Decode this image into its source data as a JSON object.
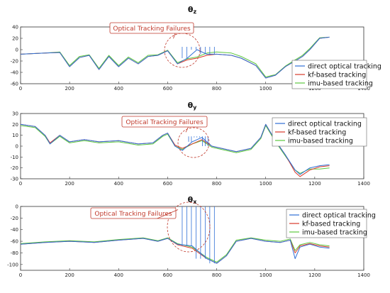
{
  "colors": {
    "direct": "#2f6fd6",
    "kf": "#d93a2b",
    "imu": "#5cc73e",
    "callout": "#c0392b",
    "axis": "#333333"
  },
  "chart_data": [
    {
      "type": "line",
      "title": "θz",
      "title_symbol": "θ",
      "title_sub": "z",
      "xlim": [
        0,
        1400
      ],
      "ylim": [
        -60,
        40
      ],
      "xticks": [
        0,
        200,
        400,
        600,
        800,
        1000,
        1200,
        1400
      ],
      "yticks": [
        -60,
        -40,
        -20,
        0,
        20,
        40
      ],
      "legend_position": "right",
      "annotation": "Optical Tracking Failures",
      "failure_region": [
        650,
        800
      ],
      "x": [
        0,
        100,
        160,
        200,
        240,
        280,
        320,
        360,
        400,
        440,
        480,
        520,
        560,
        600,
        640,
        680,
        720,
        760,
        800,
        860,
        900,
        960,
        1000,
        1040,
        1080,
        1120,
        1150,
        1180,
        1220,
        1260
      ],
      "series": [
        {
          "name": "direct optical tracking",
          "key": "direct",
          "values": [
            -8,
            -6,
            -5,
            -30,
            -14,
            -10,
            -35,
            -12,
            -30,
            -15,
            -25,
            -12,
            -10,
            -2,
            -25,
            -15,
            0,
            -8,
            -8,
            -10,
            -15,
            -28,
            -50,
            -45,
            -30,
            -20,
            -12,
            0,
            20,
            22
          ]
        },
        {
          "name": "kf-based tracking",
          "key": "kf",
          "values": [
            -8,
            -6,
            -5,
            -30,
            -14,
            -10,
            -35,
            -12,
            -30,
            -15,
            -25,
            -12,
            -10,
            -2,
            -25,
            -18,
            -15,
            -10,
            -8,
            -10,
            -15,
            -28,
            -50,
            -45,
            -30,
            -20,
            -12,
            0,
            20,
            22
          ]
        },
        {
          "name": "imu-based tracking",
          "key": "imu",
          "values": [
            -8,
            -6,
            -4,
            -28,
            -12,
            -9,
            -33,
            -10,
            -28,
            -13,
            -23,
            -10,
            -9,
            -1,
            -23,
            -16,
            -13,
            -6,
            -4,
            -6,
            -12,
            -25,
            -48,
            -44,
            -29,
            -18,
            -10,
            2,
            21,
            22
          ]
        }
      ]
    },
    {
      "type": "line",
      "title": "θy",
      "title_symbol": "θ",
      "title_sub": "y",
      "xlim": [
        0,
        1400
      ],
      "ylim": [
        -30,
        30
      ],
      "xticks": [
        0,
        200,
        400,
        600,
        800,
        1000,
        1200,
        1400
      ],
      "yticks": [
        -30,
        -20,
        -10,
        0,
        10,
        20,
        30
      ],
      "legend_position": "top-right",
      "annotation": "Optical Tracking Failures",
      "failure_region": [
        680,
        770
      ],
      "x": [
        0,
        60,
        100,
        120,
        160,
        200,
        260,
        320,
        400,
        480,
        540,
        580,
        600,
        630,
        660,
        700,
        740,
        780,
        820,
        880,
        940,
        980,
        1000,
        1040,
        1080,
        1120,
        1140,
        1180,
        1220,
        1260
      ],
      "series": [
        {
          "name": "direct optical tracking",
          "key": "direct",
          "values": [
            20,
            18,
            10,
            2,
            10,
            4,
            6,
            4,
            5,
            2,
            3,
            10,
            12,
            0,
            -4,
            4,
            8,
            0,
            -2,
            -5,
            -2,
            8,
            20,
            5,
            -8,
            -22,
            -26,
            -20,
            -18,
            -17
          ]
        },
        {
          "name": "kf-based tracking",
          "key": "kf",
          "values": [
            20,
            18,
            10,
            3,
            10,
            4,
            6,
            4,
            5,
            2,
            3,
            10,
            12,
            1,
            -2,
            2,
            6,
            0,
            -2,
            -5,
            -2,
            8,
            20,
            5,
            -8,
            -24,
            -28,
            -22,
            -19,
            -18
          ]
        },
        {
          "name": "imu-based tracking",
          "key": "imu",
          "values": [
            19,
            17,
            9,
            2,
            9,
            3,
            5,
            3,
            4,
            1,
            2,
            9,
            11,
            0,
            -3,
            2,
            5,
            -1,
            -3,
            -6,
            -3,
            7,
            19,
            4,
            -9,
            -22,
            -25,
            -21,
            -21,
            -20
          ]
        }
      ]
    },
    {
      "type": "line",
      "title": "θx",
      "title_symbol": "θ",
      "title_sub": "x",
      "xlim": [
        0,
        1400
      ],
      "ylim": [
        -110,
        0
      ],
      "xticks": [
        0,
        200,
        400,
        600,
        800,
        1000,
        1200,
        1400
      ],
      "yticks": [
        -100,
        -80,
        -60,
        -40,
        -20,
        0
      ],
      "legend_position": "top-right",
      "annotation": "Optical Tracking Failures",
      "failure_region": [
        650,
        800
      ],
      "x": [
        0,
        100,
        200,
        300,
        400,
        500,
        560,
        600,
        640,
        700,
        760,
        800,
        840,
        880,
        940,
        1000,
        1060,
        1100,
        1120,
        1140,
        1180,
        1220,
        1260
      ],
      "series": [
        {
          "name": "direct optical tracking",
          "key": "direct",
          "values": [
            -65,
            -62,
            -60,
            -62,
            -58,
            -55,
            -60,
            -55,
            -65,
            -68,
            -90,
            -98,
            -85,
            -60,
            -55,
            -60,
            -62,
            -58,
            -90,
            -70,
            -65,
            -70,
            -72
          ]
        },
        {
          "name": "kf-based tracking",
          "key": "kf",
          "values": [
            -65,
            -62,
            -60,
            -62,
            -58,
            -55,
            -60,
            -55,
            -66,
            -72,
            -90,
            -98,
            -85,
            -60,
            -55,
            -60,
            -62,
            -58,
            -80,
            -68,
            -64,
            -68,
            -70
          ]
        },
        {
          "name": "imu-based tracking",
          "key": "imu",
          "values": [
            -64,
            -61,
            -59,
            -61,
            -57,
            -54,
            -59,
            -54,
            -64,
            -70,
            -88,
            -96,
            -83,
            -58,
            -54,
            -58,
            -60,
            -56,
            -76,
            -66,
            -62,
            -66,
            -68
          ]
        }
      ]
    }
  ]
}
